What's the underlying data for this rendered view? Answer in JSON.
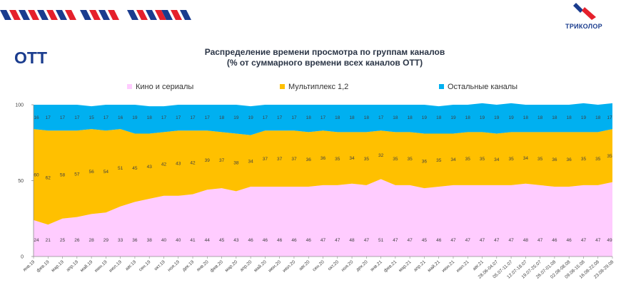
{
  "header": {
    "section_title": "OTT",
    "chart_title_line1": "Распределение времени просмотра по группам каналов",
    "chart_title_line2": "(% от суммарного времени всех каналов OTT)"
  },
  "logo": {
    "text": "ТРИКОЛОР",
    "colors": [
      "#1a3c8e",
      "#e5202b"
    ]
  },
  "decor": {
    "stripe_colors": [
      "#1a3c8e",
      "#e5202b"
    ]
  },
  "colors": {
    "kino": "#ffccff",
    "multiplex": "#ffc000",
    "other": "#00b0f0",
    "axis": "#8c8c8c"
  },
  "chart_data": {
    "type": "area",
    "stacked": true,
    "ylim": [
      0,
      100
    ],
    "yticks": [
      0,
      50,
      100
    ],
    "categories": [
      "янв.19",
      "фев.19",
      "мар.19",
      "апр.19",
      "май.19",
      "июн.19",
      "июл.19",
      "авг.19",
      "сен.19",
      "окт.19",
      "ноя.19",
      "дек.19",
      "янв.20",
      "фев.20",
      "мар.20",
      "апр.20",
      "май.20",
      "июн.20",
      "июл.20",
      "авг.20",
      "сен.20",
      "окт.20",
      "ноя.20",
      "дек.20",
      "янв.21",
      "фев.21",
      "мар.21",
      "апр.21",
      "май.21",
      "июн.21",
      "июл.21",
      "авг.21",
      "28.06-04.07",
      "05.07-11.07",
      "12.07-18.07",
      "19.07-25.07",
      "26.07-01.08",
      "02.08-08.08",
      "09.08-15.08",
      "16.08-22.08",
      "23.08-29.08"
    ],
    "legend": [
      "Кино и сериалы",
      "Мультиплекс 1,2",
      "Остальные каналы"
    ],
    "series": [
      {
        "name": "Кино и сериалы",
        "values": [
          24,
          21,
          25,
          26,
          28,
          29,
          33,
          36,
          38,
          40,
          40,
          41,
          44,
          45,
          43,
          46,
          46,
          46,
          46,
          46,
          47,
          47,
          48,
          47,
          51,
          47,
          47,
          45,
          46,
          47,
          47,
          47,
          47,
          47,
          48,
          47,
          46,
          46,
          47,
          47,
          49
        ]
      },
      {
        "name": "Мультиплекс 1,2",
        "values": [
          60,
          62,
          58,
          57,
          56,
          54,
          51,
          45,
          43,
          42,
          43,
          42,
          39,
          37,
          38,
          34,
          37,
          37,
          37,
          36,
          36,
          35,
          34,
          35,
          32,
          35,
          35,
          36,
          35,
          34,
          35,
          35,
          34,
          35,
          34,
          35,
          36,
          36,
          35,
          35,
          35
        ]
      },
      {
        "name": "Остальные каналы",
        "values": [
          16,
          17,
          17,
          17,
          15,
          17,
          16,
          19,
          18,
          17,
          17,
          17,
          17,
          18,
          19,
          19,
          17,
          17,
          17,
          18,
          17,
          18,
          18,
          18,
          17,
          18,
          18,
          19,
          18,
          19,
          18,
          19,
          19,
          19,
          18,
          18,
          18,
          18,
          19,
          18,
          17
        ]
      }
    ]
  }
}
